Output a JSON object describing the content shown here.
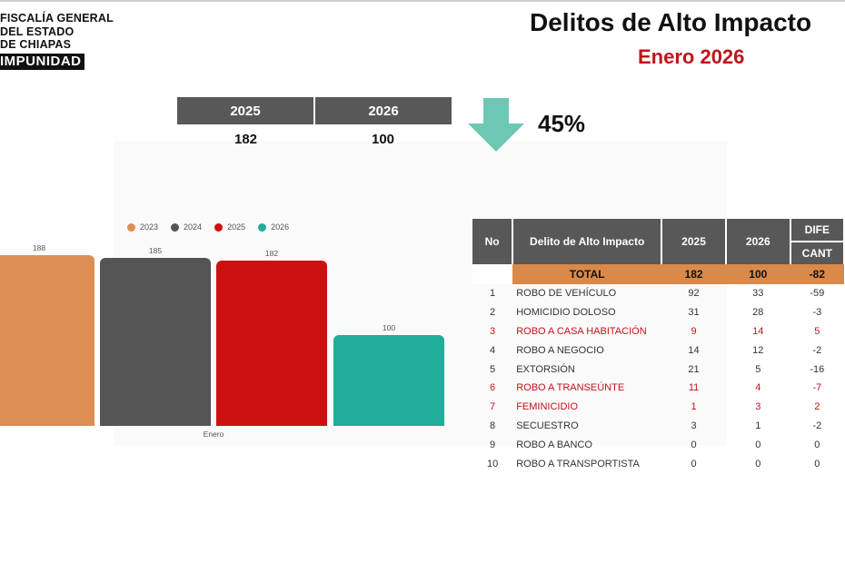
{
  "org": {
    "line1": "FISCALÍA GENERAL",
    "line2": "DEL ESTADO",
    "line3": "DE CHIAPAS",
    "tag": "IMPUNIDAD"
  },
  "title": "Delitos de Alto Impacto",
  "subtitle": "Enero 2026",
  "comparison": {
    "headers": [
      "2025",
      "2026"
    ],
    "values": [
      "182",
      "100"
    ],
    "change": "45%",
    "direction_icon": "down-arrow-icon",
    "arrow_color": "#6cc7b4"
  },
  "chart_data": {
    "type": "bar",
    "categories": [
      "Enero"
    ],
    "series": [
      {
        "name": "2023",
        "values": [
          188
        ],
        "color": "#dc8e55"
      },
      {
        "name": "2024",
        "values": [
          185
        ],
        "color": "#555555"
      },
      {
        "name": "2025",
        "values": [
          182
        ],
        "color": "#cc1012"
      },
      {
        "name": "2026",
        "values": [
          100
        ],
        "color": "#20ad9a"
      }
    ],
    "title": "",
    "xlabel": "",
    "ylabel": "",
    "ylim": [
      0,
      200
    ],
    "legend": "top",
    "grid": false
  },
  "table": {
    "headers": {
      "no": "No",
      "delito": "Delito de Alto Impacto",
      "y2025": "2025",
      "y2026": "2026",
      "diferencia": "DIFE",
      "cantidad": "CANT"
    },
    "total": {
      "label": "TOTAL",
      "y2025": "182",
      "y2026": "100",
      "diff": "-82"
    },
    "rows": [
      {
        "no": "1",
        "name": "ROBO DE VEHÍCULO",
        "y2025": "92",
        "y2026": "33",
        "diff": "-59"
      },
      {
        "no": "2",
        "name": "HOMICIDIO DOLOSO",
        "y2025": "31",
        "y2026": "28",
        "diff": "-3"
      },
      {
        "no": "3",
        "name": "ROBO A CASA HABITACIÓN",
        "y2025": "9",
        "y2026": "14",
        "diff": "5"
      },
      {
        "no": "4",
        "name": "ROBO A NEGOCIO",
        "y2025": "14",
        "y2026": "12",
        "diff": "-2"
      },
      {
        "no": "5",
        "name": "EXTORSIÓN",
        "y2025": "21",
        "y2026": "5",
        "diff": "-16"
      },
      {
        "no": "6",
        "name": "ROBO A TRANSEÚNTE",
        "y2025": "11",
        "y2026": "4",
        "diff": "-7"
      },
      {
        "no": "7",
        "name": "FEMINICIDIO",
        "y2025": "1",
        "y2026": "3",
        "diff": "2"
      },
      {
        "no": "8",
        "name": "SECUESTRO",
        "y2025": "3",
        "y2026": "1",
        "diff": "-2"
      },
      {
        "no": "9",
        "name": "ROBO A BANCO",
        "y2025": "0",
        "y2026": "0",
        "diff": "0"
      },
      {
        "no": "10",
        "name": "ROBO A TRANSPORTISTA",
        "y2025": "0",
        "y2026": "0",
        "diff": "0"
      }
    ],
    "highlight_color": "#c0141b"
  }
}
